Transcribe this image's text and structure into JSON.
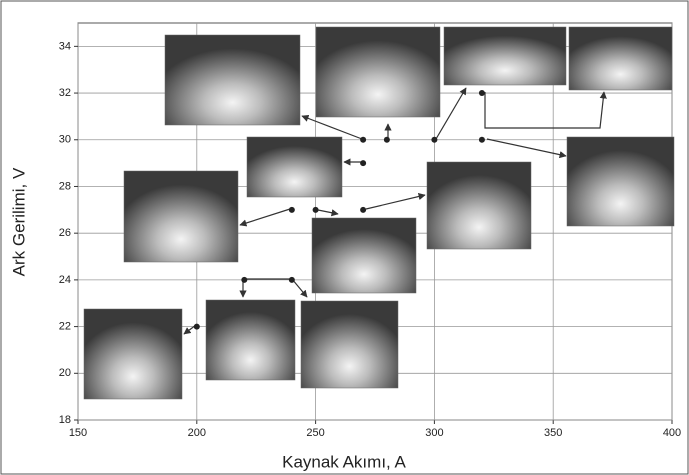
{
  "chart_data": {
    "type": "scatter",
    "xlabel": "Kaynak Akımı, A",
    "ylabel": "Ark Gerilimi, V",
    "x": [
      270,
      280,
      300,
      320,
      320,
      270,
      240,
      250,
      270,
      220,
      240,
      200
    ],
    "values": [
      30,
      30,
      30,
      30,
      32,
      29,
      27,
      27,
      27,
      24,
      24,
      22
    ],
    "color": "#222222",
    "xlim": [
      150,
      400
    ],
    "xticks": [
      150,
      200,
      250,
      300,
      350,
      400
    ],
    "ylim": [
      18,
      35
    ],
    "yticks": [
      18,
      20,
      22,
      24,
      26,
      28,
      30,
      32,
      34
    ],
    "grid": true
  }
}
